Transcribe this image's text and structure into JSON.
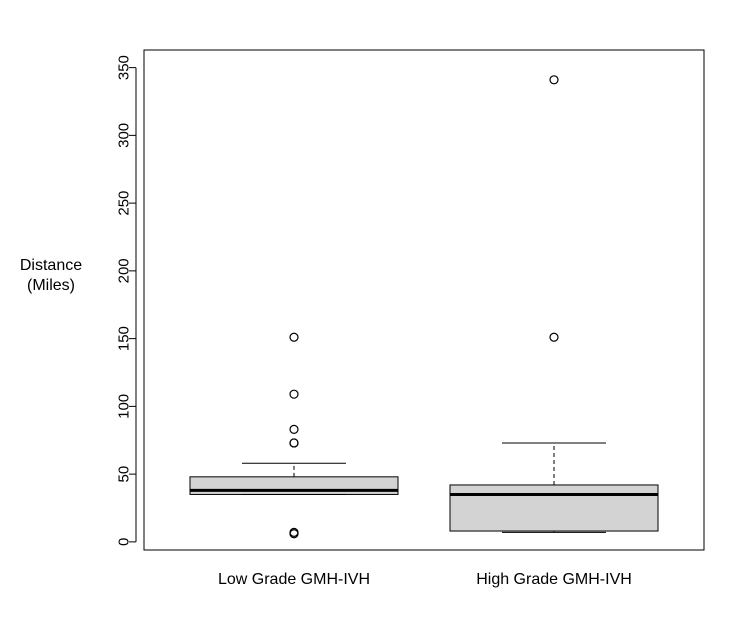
{
  "chart_data": {
    "type": "box",
    "ylabel_lines": [
      "Distance",
      "(Miles)"
    ],
    "ylim": [
      -6,
      363
    ],
    "yticks": [
      0,
      50,
      100,
      150,
      200,
      250,
      300,
      350
    ],
    "categories": [
      "Low Grade GMH-IVH",
      "High Grade GMH-IVH"
    ],
    "boxes": [
      {
        "name": "Low Grade GMH-IVH",
        "whisker_low": 35,
        "q1": 35,
        "median": 38,
        "q3": 48,
        "whisker_high": 58,
        "outliers": [
          151,
          109,
          83,
          73,
          73,
          7,
          6
        ]
      },
      {
        "name": "High Grade GMH-IVH",
        "whisker_low": 7,
        "q1": 8,
        "median": 35,
        "q3": 42,
        "whisker_high": 73,
        "outliers": [
          341,
          151
        ]
      }
    ],
    "colors": {
      "box_fill": "#d3d3d3",
      "stroke": "#000000"
    }
  }
}
